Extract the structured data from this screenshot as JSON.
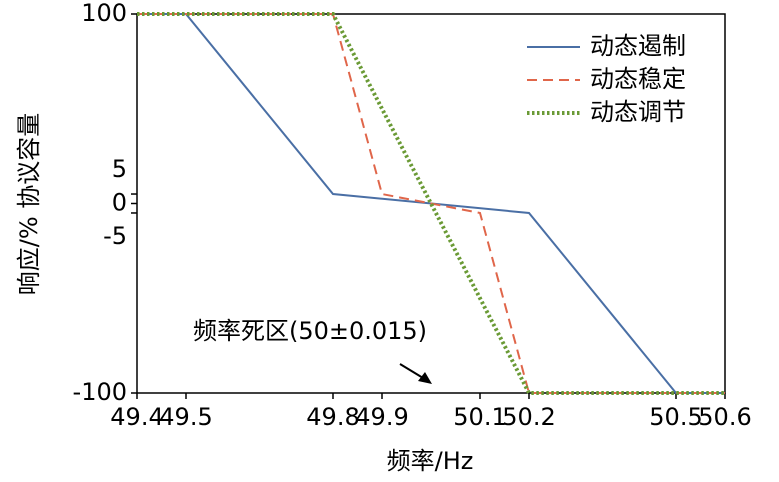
{
  "chart_data": {
    "type": "line",
    "xlabel": "频率/Hz",
    "ylabel": "响应/% 协议容量",
    "annotation": "频率死区(50±0.015)",
    "xlim": [
      49.4,
      50.6
    ],
    "xticks": [
      49.4,
      49.5,
      49.8,
      49.9,
      50.1,
      50.2,
      50.5,
      50.6
    ],
    "ylim": [
      -100,
      100
    ],
    "yticks": [
      -100,
      -5,
      0,
      5,
      100
    ],
    "legend": "upper right",
    "series": [
      {
        "name": "动态遏制",
        "color": "#4a6fa5",
        "dash": "solid",
        "x": [
          49.4,
          49.5,
          49.8,
          50.2,
          50.5,
          50.6
        ],
        "values": [
          100,
          100,
          5,
          -5,
          -100,
          -100
        ]
      },
      {
        "name": "动态稳定",
        "color": "#e0664a",
        "dash": "dashed",
        "x": [
          49.4,
          49.8,
          49.9,
          50.1,
          50.2,
          50.6
        ],
        "values": [
          100,
          100,
          5,
          -5,
          -100,
          -100
        ]
      },
      {
        "name": "动态调节",
        "color": "#6a9a35",
        "dash": "dotted",
        "x": [
          49.4,
          49.8,
          50.2,
          50.6
        ],
        "values": [
          100,
          100,
          -100,
          -100
        ]
      }
    ]
  }
}
